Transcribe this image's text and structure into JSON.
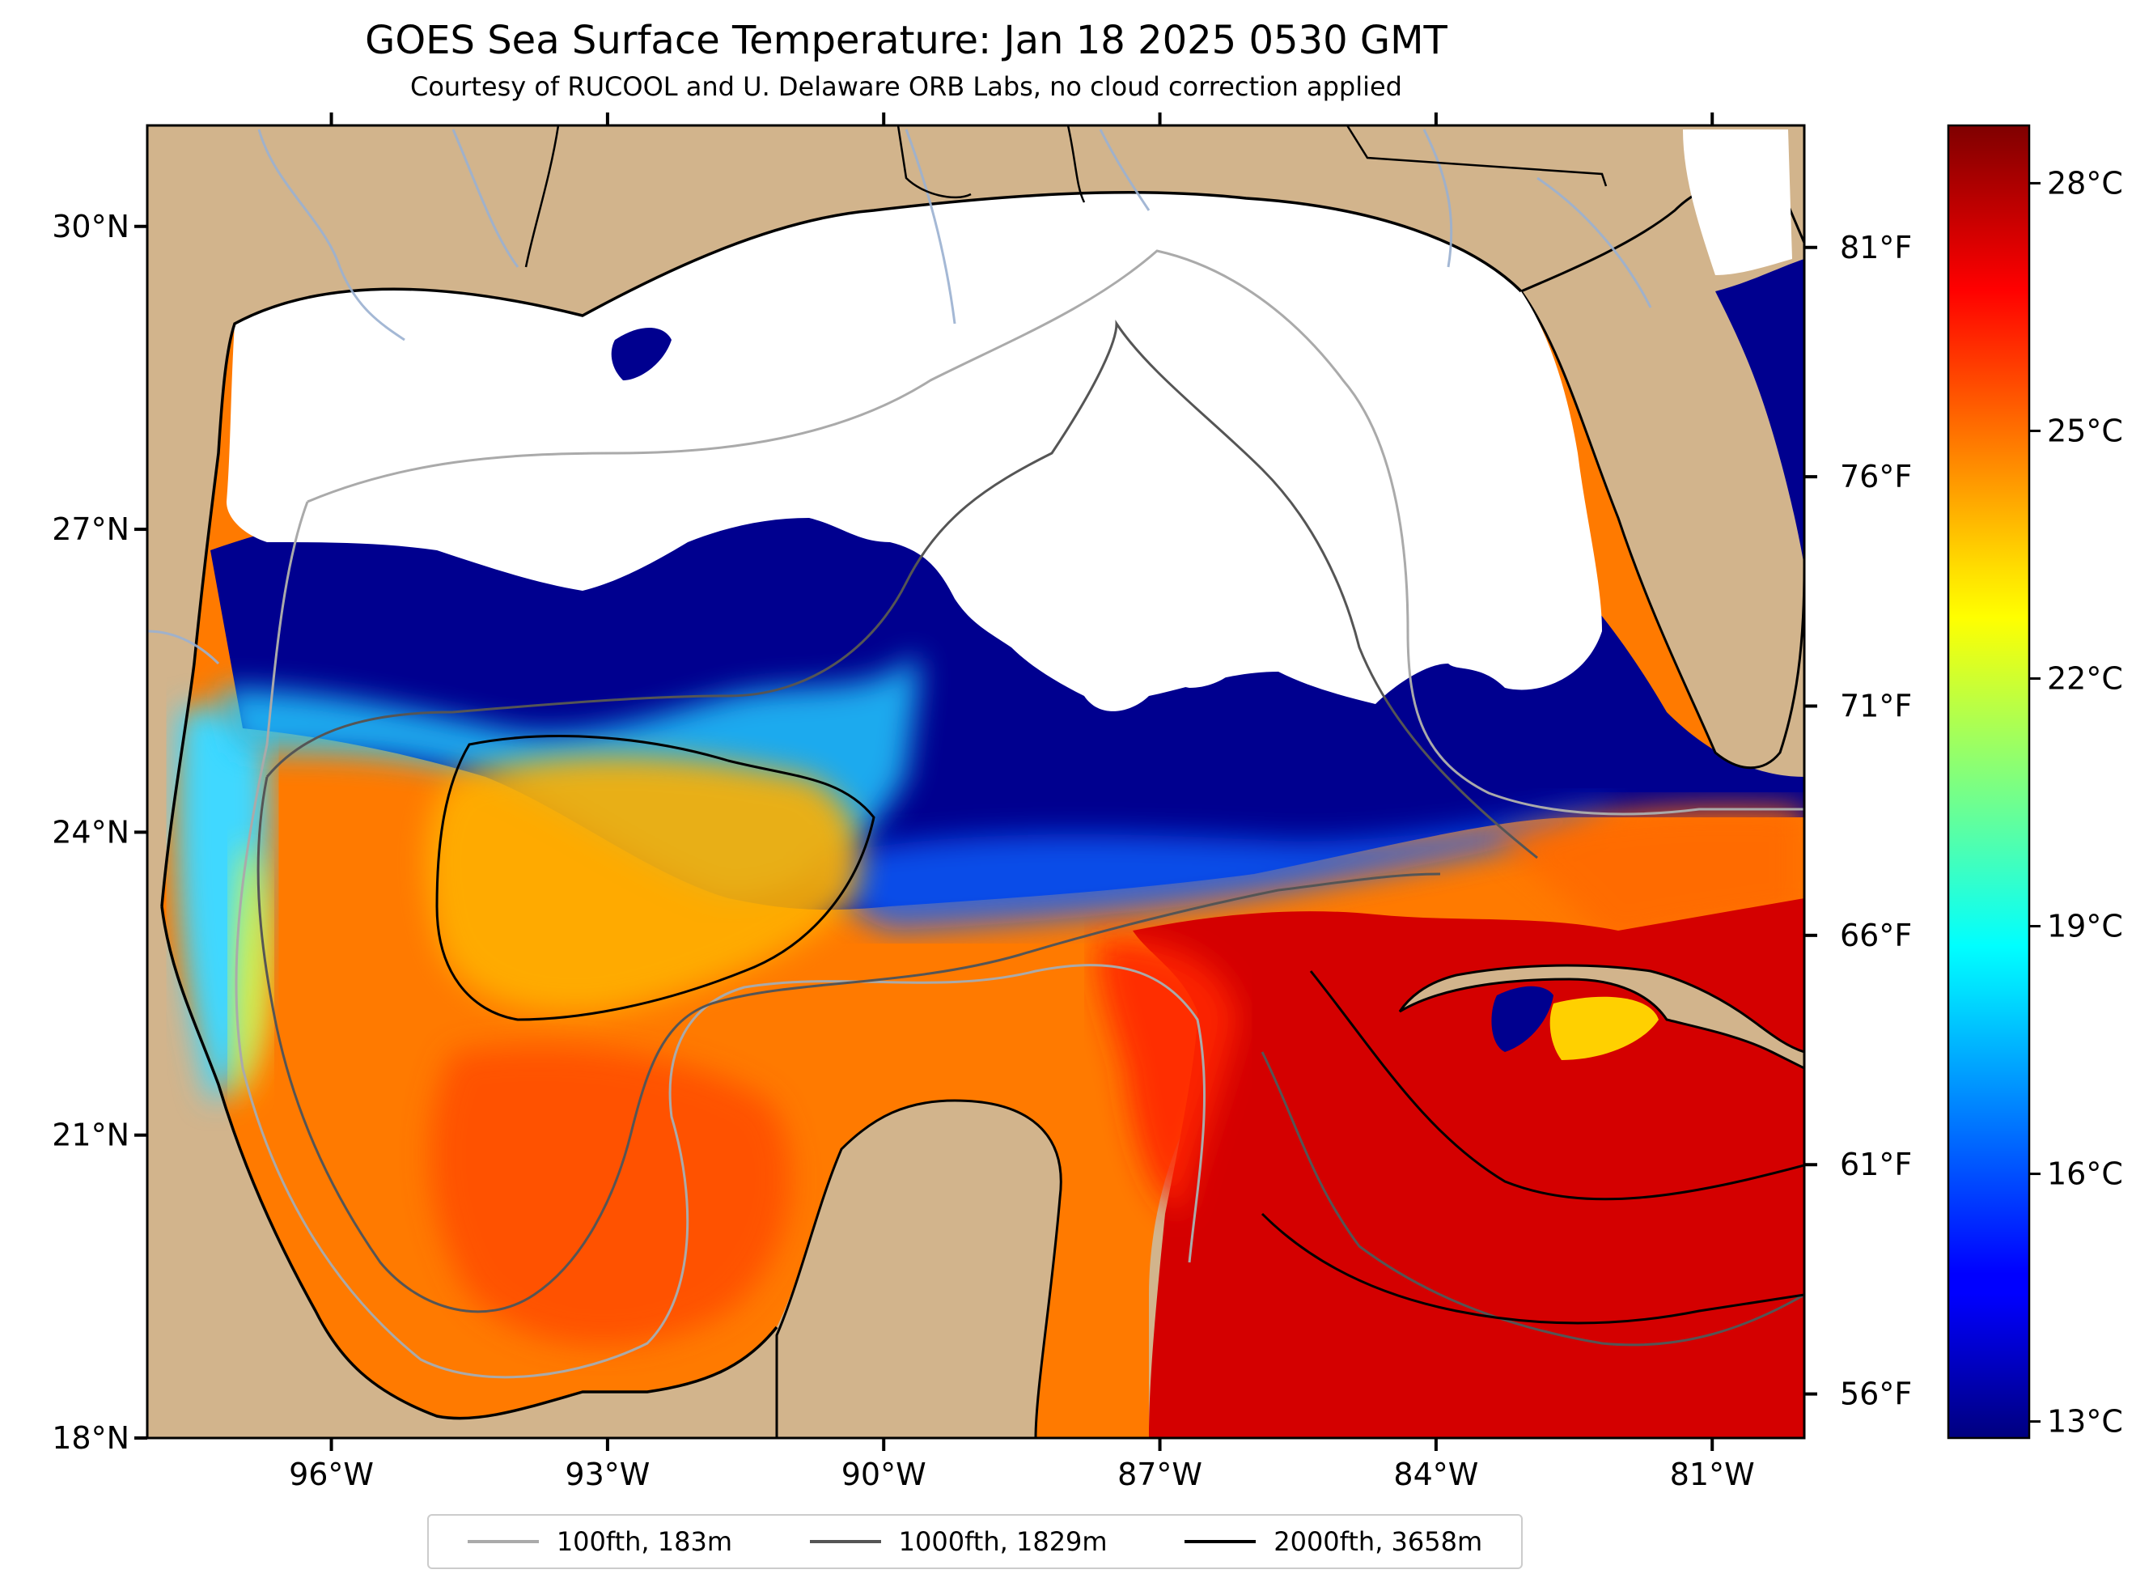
{
  "title": "GOES Sea Surface Temperature: Jan 18 2025 0530 GMT",
  "subtitle": "Courtesy of RUCOOL and U. Delaware ORB Labs, no cloud correction applied",
  "map": {
    "extent": {
      "lon_min": -98,
      "lon_max": -80,
      "lat_min": 18,
      "lat_max": 31
    },
    "lat_ticks": [
      {
        "value": 30,
        "label": "30°N"
      },
      {
        "value": 27,
        "label": "27°N"
      },
      {
        "value": 24,
        "label": "24°N"
      },
      {
        "value": 21,
        "label": "21°N"
      },
      {
        "value": 18,
        "label": "18°N"
      }
    ],
    "lon_ticks": [
      {
        "value": -96,
        "label": "96°W"
      },
      {
        "value": -93,
        "label": "93°W"
      },
      {
        "value": -90,
        "label": "90°W"
      },
      {
        "value": -87,
        "label": "87°W"
      },
      {
        "value": -84,
        "label": "84°W"
      },
      {
        "value": -81,
        "label": "81°W"
      }
    ],
    "fahrenheit_ticks": [
      {
        "value": 81,
        "label": "81°F"
      },
      {
        "value": 76,
        "label": "76°F"
      },
      {
        "value": 71,
        "label": "71°F"
      },
      {
        "value": 66,
        "label": "66°F"
      },
      {
        "value": 61,
        "label": "61°F"
      },
      {
        "value": 56,
        "label": "56°F"
      }
    ],
    "colors": {
      "land": "#d2b48c",
      "cloud": "#ffffff",
      "water_cold": "#00008f"
    }
  },
  "colorbar": {
    "min": 12.8,
    "max": 28.7,
    "colormap": "jet",
    "ticks": [
      {
        "value": 28,
        "label": "28°C"
      },
      {
        "value": 25,
        "label": "25°C"
      },
      {
        "value": 22,
        "label": "22°C"
      },
      {
        "value": 19,
        "label": "19°C"
      },
      {
        "value": 16,
        "label": "16°C"
      },
      {
        "value": 13,
        "label": "13°C"
      }
    ]
  },
  "legend": {
    "entries": [
      {
        "label": "100fth, 183m",
        "color": "#aaaaaa"
      },
      {
        "label": "1000fth, 1829m",
        "color": "#555555"
      },
      {
        "label": "2000fth, 3658m",
        "color": "#000000"
      }
    ]
  }
}
